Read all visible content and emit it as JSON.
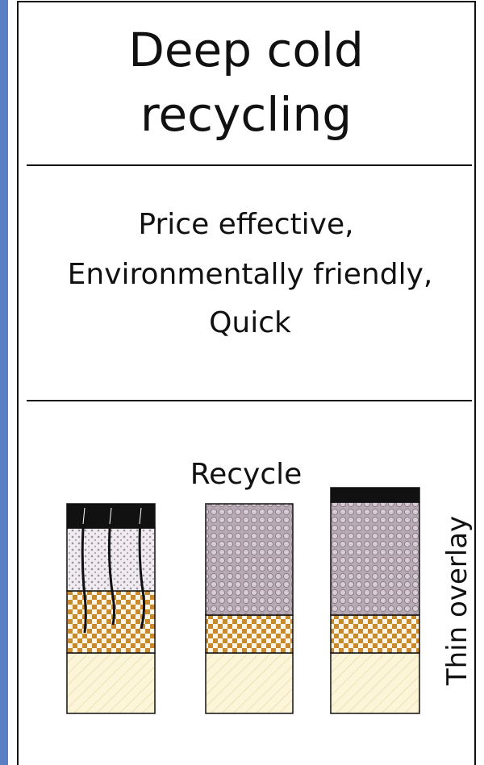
{
  "header": {
    "title": [
      "Deep cold",
      "recycling"
    ]
  },
  "benefits": [
    "Price effective,",
    "Environmentally friendly,",
    "Quick"
  ],
  "diagram": {
    "label": "Recycle",
    "side_label": "Thin overlay"
  }
}
